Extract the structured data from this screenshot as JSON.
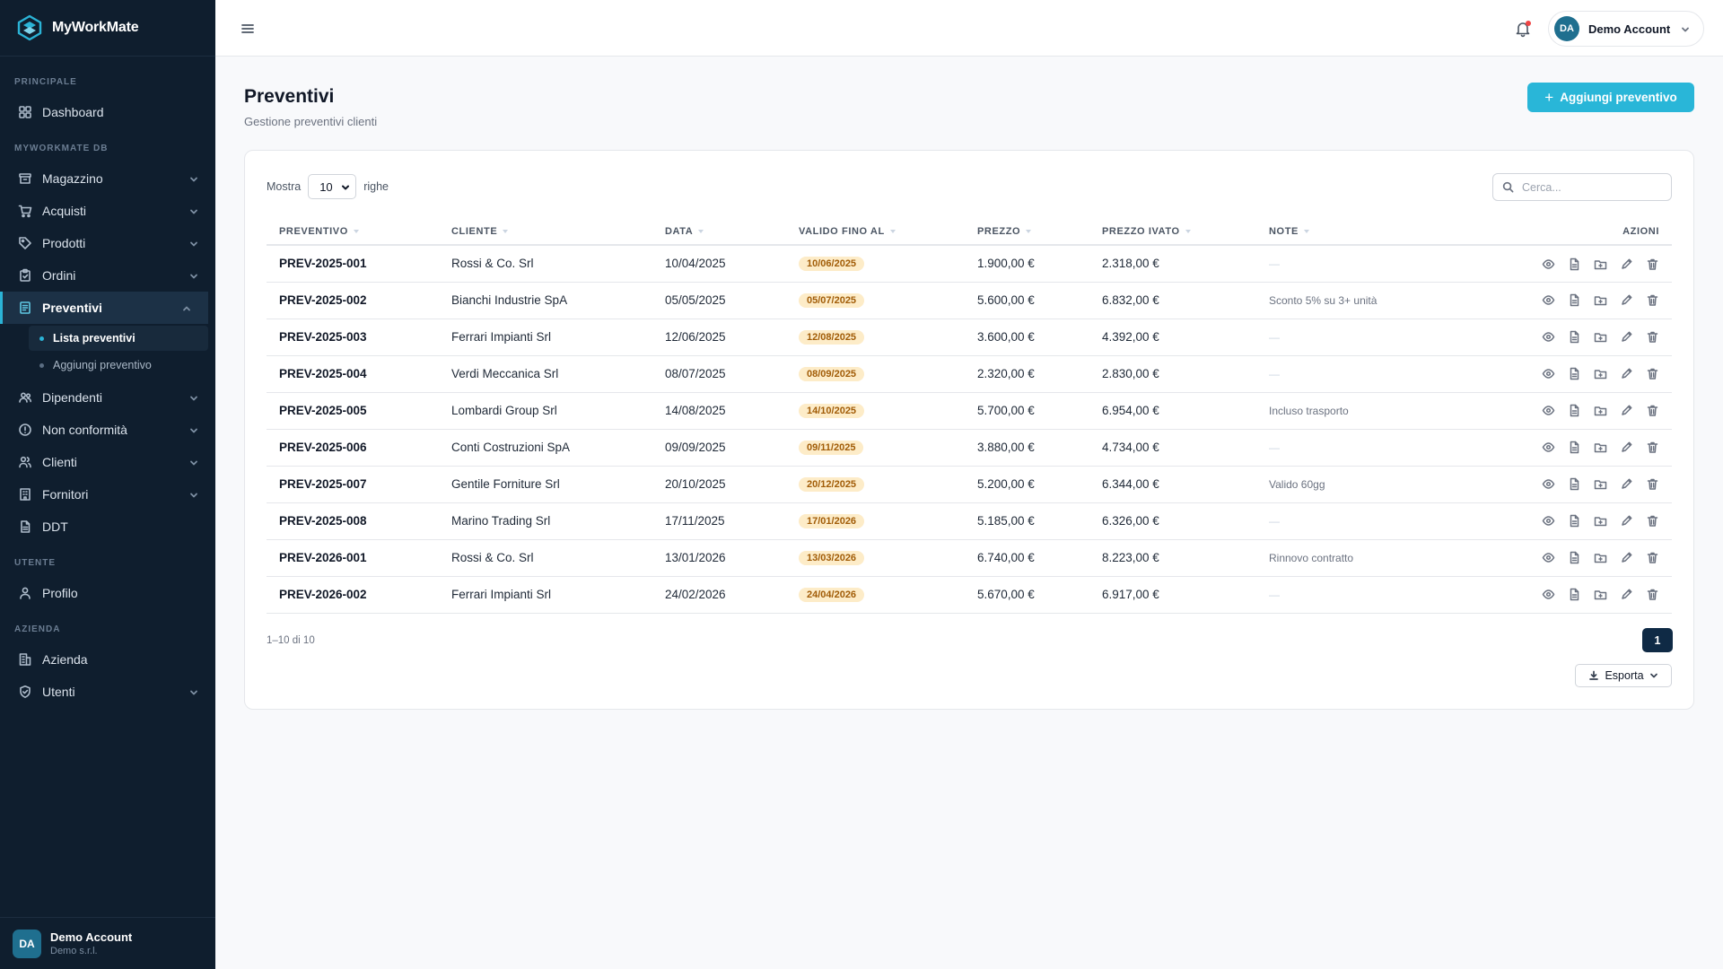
{
  "brand": {
    "name": "MyWorkMate"
  },
  "sidebar": {
    "sections": [
      {
        "label": "PRINCIPALE"
      },
      {
        "label": "MYWORKMATE DB"
      },
      {
        "label": "UTENTE"
      },
      {
        "label": "AZIENDA"
      }
    ],
    "items": [
      {
        "label": "Dashboard",
        "icon": "grid-icon"
      },
      {
        "label": "Magazzino",
        "icon": "archive-icon"
      },
      {
        "label": "Acquisti",
        "icon": "cart-icon"
      },
      {
        "label": "Prodotti",
        "icon": "tag-icon"
      },
      {
        "label": "Ordini",
        "icon": "clipboard-icon"
      },
      {
        "label": "Preventivi",
        "icon": "document-icon"
      },
      {
        "label": "Dipendenti",
        "icon": "users-group-icon"
      },
      {
        "label": "Non conformità",
        "icon": "alert-circle-icon"
      },
      {
        "label": "Clienti",
        "icon": "users-icon"
      },
      {
        "label": "Fornitori",
        "icon": "building-icon"
      },
      {
        "label": "DDT",
        "icon": "file-icon"
      },
      {
        "label": "Profilo",
        "icon": "user-icon"
      },
      {
        "label": "Azienda",
        "icon": "office-icon"
      },
      {
        "label": "Utenti",
        "icon": "shield-icon"
      }
    ],
    "sub_items": [
      {
        "label": "Lista preventivi"
      },
      {
        "label": "Aggiungi preventivo"
      }
    ],
    "footer": {
      "initials": "DA",
      "name": "Demo Account",
      "company": "Demo s.r.l."
    }
  },
  "topbar": {
    "user": {
      "initials": "DA",
      "name": "Demo Account"
    }
  },
  "page": {
    "title": "Preventivi",
    "subtitle": "Gestione preventivi clienti",
    "add_button": "Aggiungi preventivo"
  },
  "table_controls": {
    "show_label": "Mostra",
    "page_size": "10",
    "rows_label": "righe",
    "search_placeholder": "Cerca..."
  },
  "table": {
    "columns": [
      "PREVENTIVO",
      "CLIENTE",
      "DATA",
      "VALIDO FINO AL",
      "PREZZO",
      "PREZZO IVATO",
      "NOTE",
      "AZIONI"
    ],
    "rows": [
      {
        "code": "PREV-2025-001",
        "client": "Rossi & Co. Srl",
        "date": "10/04/2025",
        "valid_until": "10/06/2025",
        "price": "1.900,00 €",
        "price_vat": "2.318,00 €",
        "note": "—"
      },
      {
        "code": "PREV-2025-002",
        "client": "Bianchi Industrie SpA",
        "date": "05/05/2025",
        "valid_until": "05/07/2025",
        "price": "5.600,00 €",
        "price_vat": "6.832,00 €",
        "note": "Sconto 5% su 3+ unità"
      },
      {
        "code": "PREV-2025-003",
        "client": "Ferrari Impianti Srl",
        "date": "12/06/2025",
        "valid_until": "12/08/2025",
        "price": "3.600,00 €",
        "price_vat": "4.392,00 €",
        "note": "—"
      },
      {
        "code": "PREV-2025-004",
        "client": "Verdi Meccanica Srl",
        "date": "08/07/2025",
        "valid_until": "08/09/2025",
        "price": "2.320,00 €",
        "price_vat": "2.830,00 €",
        "note": "—"
      },
      {
        "code": "PREV-2025-005",
        "client": "Lombardi Group Srl",
        "date": "14/08/2025",
        "valid_until": "14/10/2025",
        "price": "5.700,00 €",
        "price_vat": "6.954,00 €",
        "note": "Incluso trasporto"
      },
      {
        "code": "PREV-2025-006",
        "client": "Conti Costruzioni SpA",
        "date": "09/09/2025",
        "valid_until": "09/11/2025",
        "price": "3.880,00 €",
        "price_vat": "4.734,00 €",
        "note": "—"
      },
      {
        "code": "PREV-2025-007",
        "client": "Gentile Forniture Srl",
        "date": "20/10/2025",
        "valid_until": "20/12/2025",
        "price": "5.200,00 €",
        "price_vat": "6.344,00 €",
        "note": "Valido 60gg"
      },
      {
        "code": "PREV-2025-008",
        "client": "Marino Trading Srl",
        "date": "17/11/2025",
        "valid_until": "17/01/2026",
        "price": "5.185,00 €",
        "price_vat": "6.326,00 €",
        "note": "—"
      },
      {
        "code": "PREV-2026-001",
        "client": "Rossi & Co. Srl",
        "date": "13/01/2026",
        "valid_until": "13/03/2026",
        "price": "6.740,00 €",
        "price_vat": "8.223,00 €",
        "note": "Rinnovo contratto"
      },
      {
        "code": "PREV-2026-002",
        "client": "Ferrari Impianti Srl",
        "date": "24/02/2026",
        "valid_until": "24/04/2026",
        "price": "5.670,00 €",
        "price_vat": "6.917,00 €",
        "note": "—"
      }
    ]
  },
  "footer": {
    "info": "1–10 di 10",
    "current_page": "1",
    "export_label": "Esporta"
  },
  "colors": {
    "accent": "#29b6d8",
    "sidebar_bg": "#0f1e2e",
    "badge_bg": "#fdecc8",
    "badge_text": "#a15c07",
    "pager_bg": "#0f2a45"
  }
}
